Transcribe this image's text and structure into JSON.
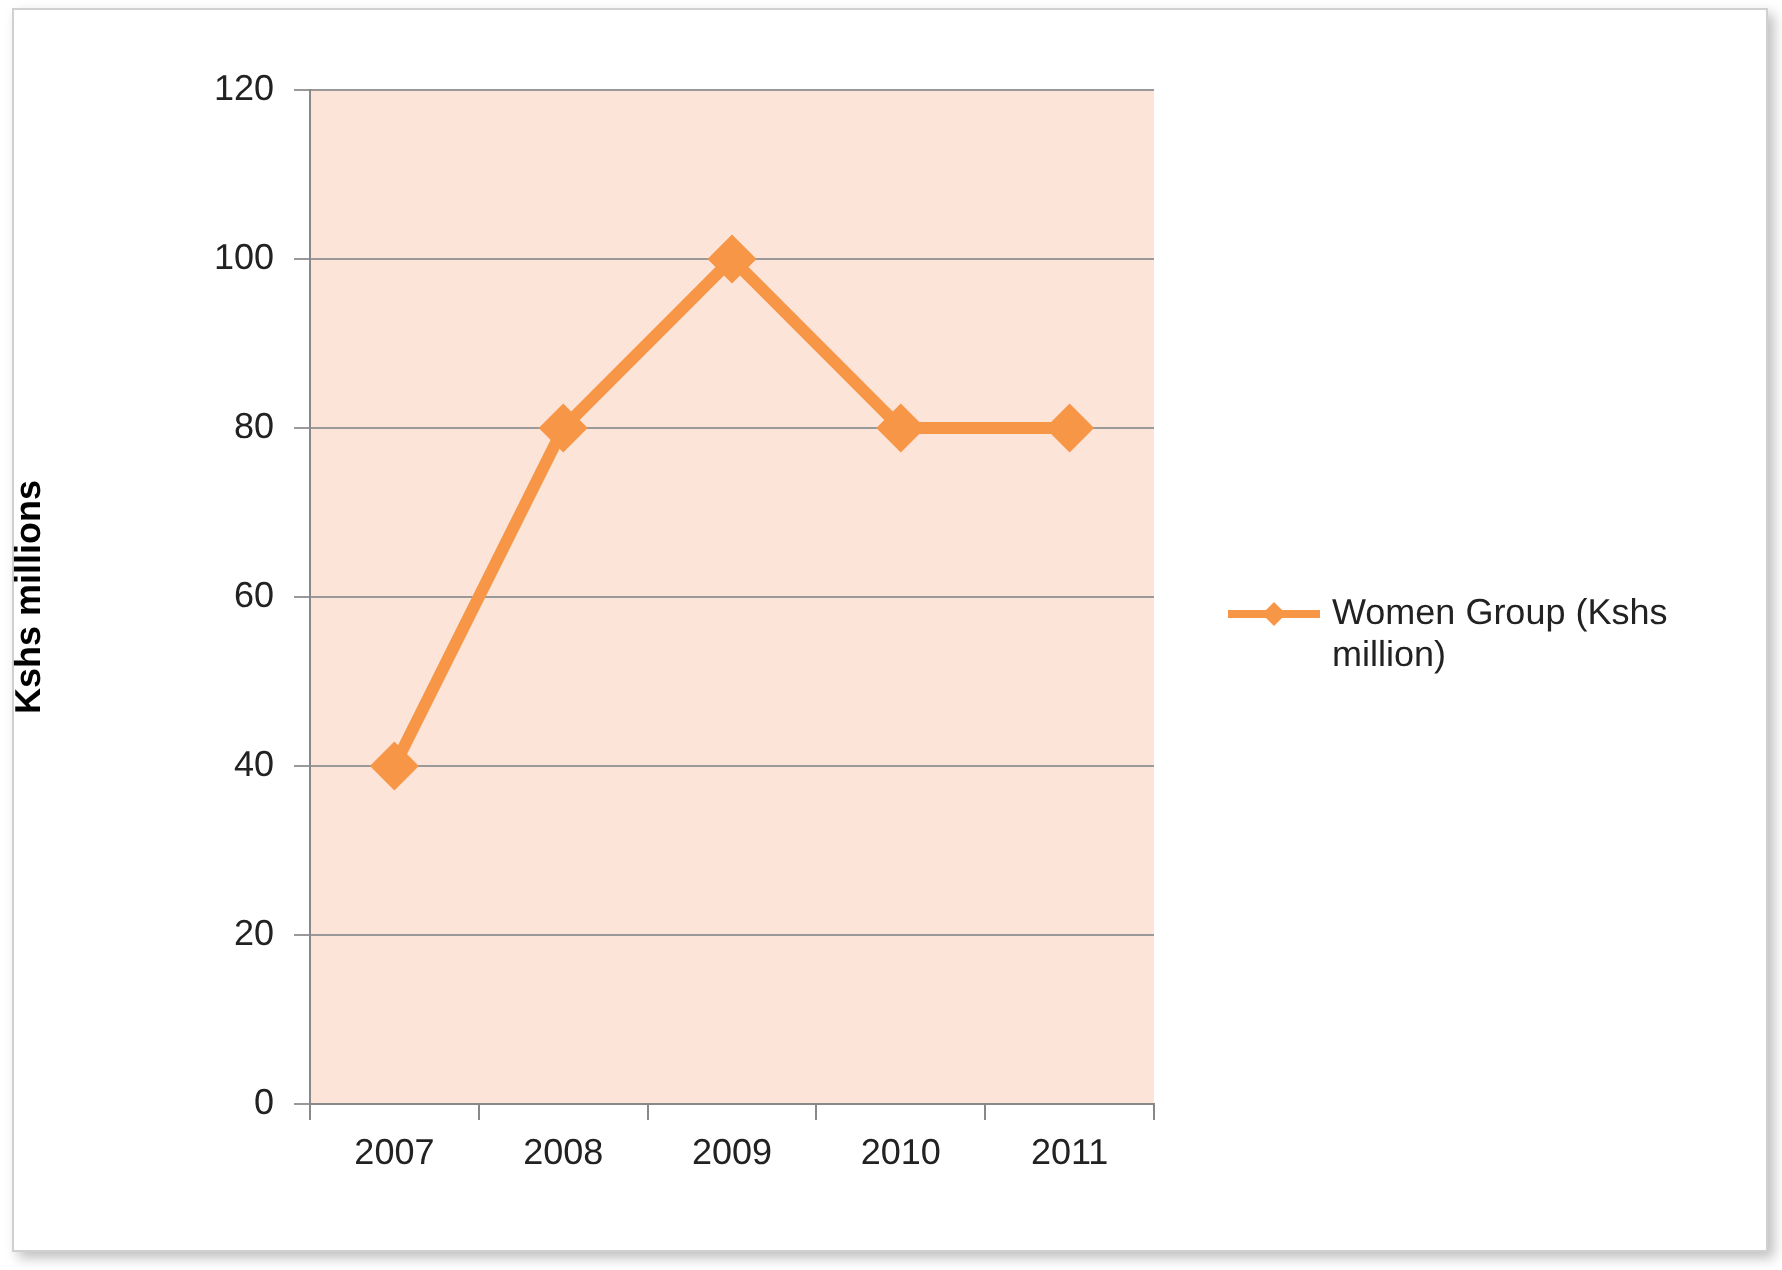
{
  "chart_data": {
    "type": "line",
    "ylabel": "Kshs millions",
    "categories": [
      "2007",
      "2008",
      "2009",
      "2010",
      "2011"
    ],
    "series": [
      {
        "name": "Women Group (Kshs million)",
        "color": "#f79646",
        "values": [
          40,
          80,
          100,
          80,
          80
        ]
      }
    ],
    "ylim": [
      0,
      120
    ],
    "yticks": [
      0,
      20,
      40,
      60,
      80,
      100,
      120
    ],
    "grid": "y",
    "legend": "right",
    "marker": "diamond",
    "line_style": "solid"
  }
}
